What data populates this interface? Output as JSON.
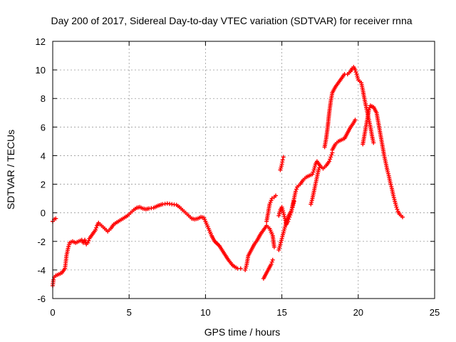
{
  "chart_data": {
    "type": "scatter",
    "title": "Day 200 of 2017, Sidereal Day-to-day VTEC variation (SDTVAR) for receiver rnna",
    "xlabel": "GPS time / hours",
    "ylabel": "SDTVAR / TECUs",
    "xlim": [
      0,
      25
    ],
    "ylim": [
      -6,
      12
    ],
    "xticks": [
      0,
      5,
      10,
      15,
      20,
      25
    ],
    "yticks": [
      -6,
      -4,
      -2,
      0,
      2,
      4,
      6,
      8,
      10,
      12
    ],
    "grid": true,
    "marker": "plus",
    "color": "#ff0000",
    "series": [
      {
        "segments": [
          [
            [
              0.0,
              -0.6
            ],
            [
              0.1,
              -0.45
            ],
            [
              0.2,
              -0.4
            ]
          ],
          [
            [
              0.0,
              -5.1
            ],
            [
              0.05,
              -4.7
            ],
            [
              0.1,
              -4.5
            ],
            [
              0.2,
              -4.4
            ],
            [
              0.4,
              -4.3
            ],
            [
              0.6,
              -4.2
            ],
            [
              0.8,
              -3.9
            ],
            [
              0.85,
              -3.5
            ],
            [
              0.9,
              -3.0
            ],
            [
              1.0,
              -2.5
            ],
            [
              1.1,
              -2.1
            ],
            [
              1.3,
              -2.0
            ],
            [
              1.5,
              -2.1
            ],
            [
              1.7,
              -2.0
            ],
            [
              1.9,
              -1.9
            ],
            [
              2.0,
              -2.1
            ],
            [
              2.1,
              -1.9
            ],
            [
              2.2,
              -2.2
            ],
            [
              2.3,
              -2.1
            ],
            [
              2.4,
              -1.8
            ],
            [
              2.6,
              -1.5
            ],
            [
              2.8,
              -1.2
            ],
            [
              2.9,
              -0.9
            ],
            [
              3.0,
              -0.7
            ],
            [
              3.2,
              -0.9
            ],
            [
              3.4,
              -1.1
            ],
            [
              3.6,
              -1.3
            ],
            [
              3.8,
              -1.1
            ],
            [
              4.0,
              -0.8
            ],
            [
              4.3,
              -0.6
            ],
            [
              4.6,
              -0.4
            ],
            [
              4.9,
              -0.2
            ],
            [
              5.1,
              0.0
            ],
            [
              5.3,
              0.2
            ],
            [
              5.5,
              0.35
            ],
            [
              5.7,
              0.4
            ],
            [
              5.9,
              0.3
            ],
            [
              6.1,
              0.25
            ],
            [
              6.3,
              0.3
            ],
            [
              6.6,
              0.35
            ],
            [
              6.9,
              0.5
            ],
            [
              7.2,
              0.6
            ],
            [
              7.5,
              0.65
            ],
            [
              7.8,
              0.6
            ],
            [
              8.1,
              0.55
            ],
            [
              8.3,
              0.4
            ],
            [
              8.5,
              0.2
            ],
            [
              8.7,
              0.0
            ],
            [
              8.9,
              -0.2
            ],
            [
              9.1,
              -0.4
            ],
            [
              9.3,
              -0.45
            ],
            [
              9.5,
              -0.4
            ],
            [
              9.7,
              -0.3
            ],
            [
              9.9,
              -0.35
            ],
            [
              10.0,
              -0.6
            ],
            [
              10.2,
              -1.1
            ],
            [
              10.4,
              -1.6
            ],
            [
              10.6,
              -2.0
            ],
            [
              10.9,
              -2.3
            ],
            [
              11.2,
              -2.8
            ],
            [
              11.5,
              -3.3
            ],
            [
              11.8,
              -3.7
            ],
            [
              12.1,
              -3.9
            ],
            [
              12.3,
              -3.9
            ]
          ],
          [
            [
              12.6,
              -4.0
            ],
            [
              12.7,
              -3.6
            ],
            [
              12.8,
              -3.0
            ],
            [
              13.0,
              -2.6
            ],
            [
              13.2,
              -2.2
            ],
            [
              13.4,
              -1.9
            ],
            [
              13.6,
              -1.5
            ],
            [
              13.8,
              -1.2
            ],
            [
              14.0,
              -0.9
            ],
            [
              14.2,
              -1.1
            ],
            [
              14.4,
              -1.6
            ],
            [
              14.5,
              -2.4
            ]
          ],
          [
            [
              13.8,
              -4.6
            ],
            [
              13.9,
              -4.4
            ],
            [
              14.0,
              -4.2
            ],
            [
              14.1,
              -4.0
            ],
            [
              14.2,
              -3.8
            ],
            [
              14.3,
              -3.6
            ],
            [
              14.4,
              -3.3
            ]
          ],
          [
            [
              14.0,
              -0.6
            ],
            [
              14.1,
              0.0
            ],
            [
              14.2,
              0.6
            ],
            [
              14.35,
              1.0
            ],
            [
              14.5,
              1.1
            ],
            [
              14.6,
              1.2
            ]
          ],
          [
            [
              14.8,
              -0.2
            ],
            [
              14.9,
              0.2
            ],
            [
              15.0,
              0.4
            ],
            [
              15.1,
              0.0
            ],
            [
              15.2,
              -0.4
            ],
            [
              15.3,
              -0.8
            ],
            [
              15.4,
              -0.6
            ],
            [
              15.5,
              -0.3
            ],
            [
              15.6,
              0.0
            ],
            [
              15.7,
              0.5
            ],
            [
              15.8,
              1.0
            ],
            [
              15.9,
              1.5
            ],
            [
              16.0,
              1.8
            ],
            [
              16.2,
              2.0
            ],
            [
              16.4,
              2.3
            ],
            [
              16.6,
              2.5
            ],
            [
              16.8,
              2.6
            ],
            [
              17.0,
              2.7
            ],
            [
              17.1,
              3.0
            ],
            [
              17.2,
              3.4
            ],
            [
              17.3,
              3.6
            ],
            [
              17.5,
              3.3
            ],
            [
              17.7,
              3.1
            ],
            [
              17.9,
              3.3
            ],
            [
              18.1,
              3.6
            ],
            [
              18.2,
              3.9
            ],
            [
              18.3,
              4.2
            ]
          ],
          [
            [
              14.9,
              3.0
            ],
            [
              15.0,
              3.4
            ],
            [
              15.05,
              3.7
            ],
            [
              15.1,
              3.9
            ]
          ],
          [
            [
              14.8,
              -2.6
            ],
            [
              14.9,
              -2.2
            ],
            [
              15.0,
              -1.8
            ],
            [
              15.1,
              -1.4
            ],
            [
              15.2,
              -1.0
            ],
            [
              15.3,
              -0.6
            ],
            [
              15.4,
              -0.3
            ],
            [
              15.5,
              -0.1
            ],
            [
              15.6,
              0.1
            ],
            [
              15.7,
              0.4
            ],
            [
              15.8,
              0.8
            ]
          ],
          [
            [
              16.9,
              0.6
            ],
            [
              17.0,
              1.0
            ],
            [
              17.1,
              1.5
            ],
            [
              17.2,
              2.0
            ],
            [
              17.3,
              2.5
            ],
            [
              17.4,
              3.0
            ],
            [
              17.5,
              3.3
            ]
          ],
          [
            [
              17.8,
              4.6
            ],
            [
              17.9,
              5.2
            ],
            [
              18.0,
              6.0
            ],
            [
              18.1,
              7.0
            ],
            [
              18.2,
              7.8
            ],
            [
              18.3,
              8.4
            ],
            [
              18.5,
              8.8
            ],
            [
              18.7,
              9.1
            ],
            [
              18.9,
              9.4
            ],
            [
              19.1,
              9.7
            ],
            [
              19.3,
              9.7
            ],
            [
              19.5,
              9.9
            ],
            [
              19.6,
              10.1
            ],
            [
              19.7,
              10.2
            ],
            [
              19.8,
              10.0
            ],
            [
              19.9,
              9.7
            ],
            [
              20.0,
              9.3
            ],
            [
              20.2,
              9.1
            ],
            [
              20.3,
              8.6
            ],
            [
              20.4,
              8.0
            ],
            [
              20.5,
              7.5
            ],
            [
              20.6,
              7.0
            ],
            [
              20.7,
              6.5
            ],
            [
              20.8,
              6.0
            ],
            [
              20.9,
              5.4
            ],
            [
              21.0,
              4.9
            ]
          ],
          [
            [
              18.3,
              4.4
            ],
            [
              18.5,
              4.8
            ],
            [
              18.7,
              5.0
            ],
            [
              18.9,
              5.1
            ],
            [
              19.1,
              5.2
            ],
            [
              19.3,
              5.6
            ],
            [
              19.5,
              6.0
            ],
            [
              19.7,
              6.3
            ],
            [
              19.8,
              6.5
            ]
          ],
          [
            [
              20.3,
              4.8
            ],
            [
              20.4,
              5.4
            ],
            [
              20.5,
              6.0
            ],
            [
              20.6,
              6.6
            ],
            [
              20.7,
              7.2
            ],
            [
              20.8,
              7.5
            ],
            [
              21.0,
              7.4
            ],
            [
              21.2,
              7.0
            ],
            [
              21.3,
              6.4
            ],
            [
              21.4,
              5.8
            ],
            [
              21.5,
              5.2
            ],
            [
              21.6,
              4.6
            ],
            [
              21.7,
              4.0
            ],
            [
              21.8,
              3.5
            ],
            [
              21.9,
              3.0
            ],
            [
              22.0,
              2.6
            ],
            [
              22.1,
              2.1
            ],
            [
              22.2,
              1.7
            ],
            [
              22.3,
              1.2
            ],
            [
              22.4,
              0.8
            ],
            [
              22.5,
              0.4
            ],
            [
              22.6,
              0.1
            ],
            [
              22.7,
              -0.1
            ],
            [
              22.8,
              -0.2
            ],
            [
              22.9,
              -0.3
            ]
          ]
        ]
      }
    ]
  }
}
